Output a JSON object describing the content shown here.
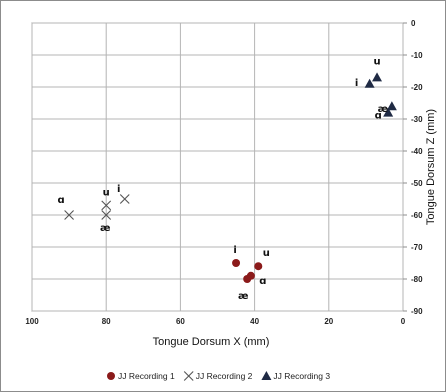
{
  "chart_data": {
    "type": "scatter",
    "xlabel": "Tongue Dorsum X (mm)",
    "ylabel": "Tongue Dorsum Z (mm)",
    "xlim": [
      100,
      0
    ],
    "ylim": [
      -90,
      0
    ],
    "x_reversed": true,
    "x_ticks": [
      100,
      80,
      60,
      40,
      20,
      0
    ],
    "y_ticks": [
      0,
      -10,
      -20,
      -30,
      -40,
      -50,
      -60,
      -70,
      -80,
      -90
    ],
    "y_axis_side": "right",
    "grid": true,
    "legend_position": "bottom",
    "series": [
      {
        "name": "JJ Recording 1",
        "marker": "circle",
        "color": "#8b1a1a",
        "points": [
          {
            "x": 45,
            "y": -75,
            "label": "i"
          },
          {
            "x": 39,
            "y": -76,
            "label": "u"
          },
          {
            "x": 41,
            "y": -79,
            "label": "ɑ"
          },
          {
            "x": 42,
            "y": -80,
            "label": "æ"
          }
        ]
      },
      {
        "name": "JJ Recording 2",
        "marker": "x",
        "color": "#555555",
        "points": [
          {
            "x": 75,
            "y": -55,
            "label": "i"
          },
          {
            "x": 80,
            "y": -57,
            "label": "u"
          },
          {
            "x": 90,
            "y": -60,
            "label": "ɑ"
          },
          {
            "x": 80,
            "y": -60,
            "label": "æ"
          }
        ]
      },
      {
        "name": "JJ Recording 3",
        "marker": "triangle",
        "color": "#1f2a44",
        "points": [
          {
            "x": 9,
            "y": -19,
            "label": "i"
          },
          {
            "x": 7,
            "y": -17,
            "label": "u"
          },
          {
            "x": 3,
            "y": -26,
            "label": "æ"
          },
          {
            "x": 4,
            "y": -28,
            "label": "ɑ"
          }
        ]
      }
    ]
  }
}
